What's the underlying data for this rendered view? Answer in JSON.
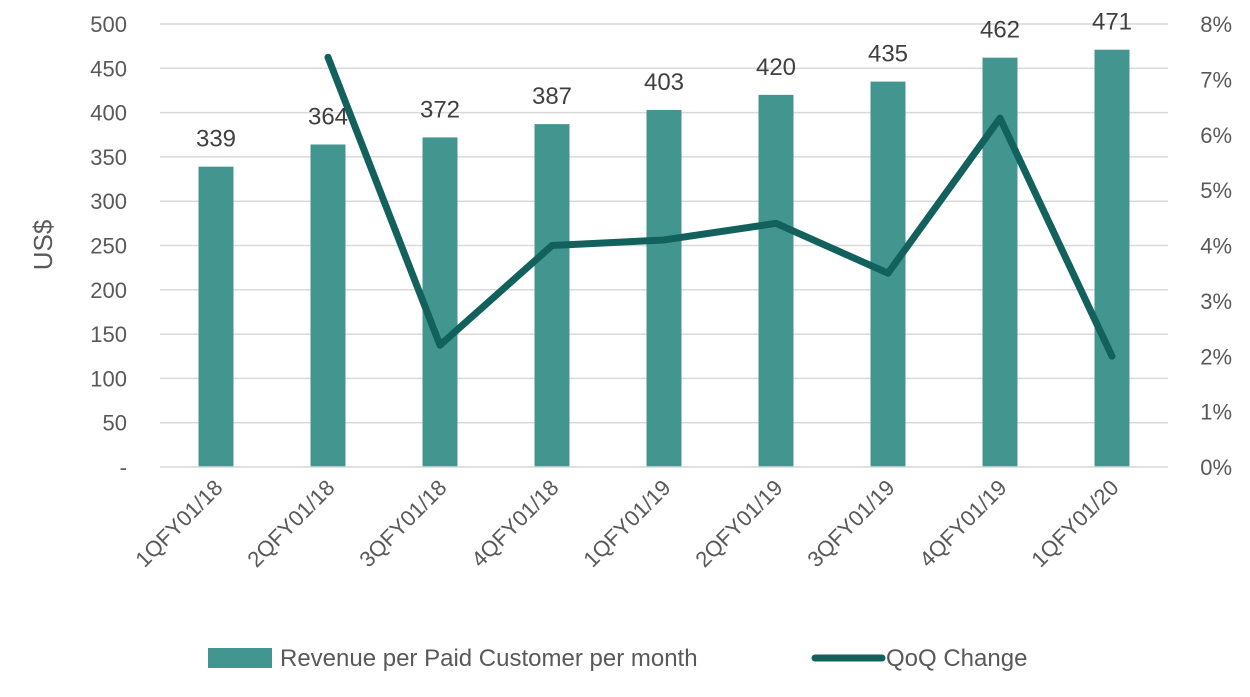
{
  "chart_data": {
    "type": "bar",
    "categories": [
      "1QFY01/18",
      "2QFY01/18",
      "3QFY01/18",
      "4QFY01/18",
      "1QFY01/19",
      "2QFY01/19",
      "3QFY01/19",
      "4QFY01/19",
      "1QFY01/20"
    ],
    "series": [
      {
        "name": "Revenue per Paid Customer per month",
        "type": "bar",
        "axis": "left",
        "color": "#43968f",
        "values": [
          339,
          364,
          372,
          387,
          403,
          420,
          435,
          462,
          471
        ]
      },
      {
        "name": "QoQ Change",
        "type": "line",
        "axis": "right",
        "color": "#13615c",
        "values": [
          null,
          7.4,
          2.2,
          4.0,
          4.1,
          4.4,
          3.5,
          6.3,
          2.0
        ]
      }
    ],
    "ylabel": "US$",
    "ylim": [
      0,
      500
    ],
    "yticks": [
      "-",
      "50",
      "100",
      "150",
      "200",
      "250",
      "300",
      "350",
      "400",
      "450",
      "500"
    ],
    "y2lim": [
      0,
      8
    ],
    "y2ticks": [
      "0%",
      "1%",
      "2%",
      "3%",
      "4%",
      "5%",
      "6%",
      "7%",
      "8%"
    ],
    "grid": true,
    "legend_position": "bottom"
  }
}
